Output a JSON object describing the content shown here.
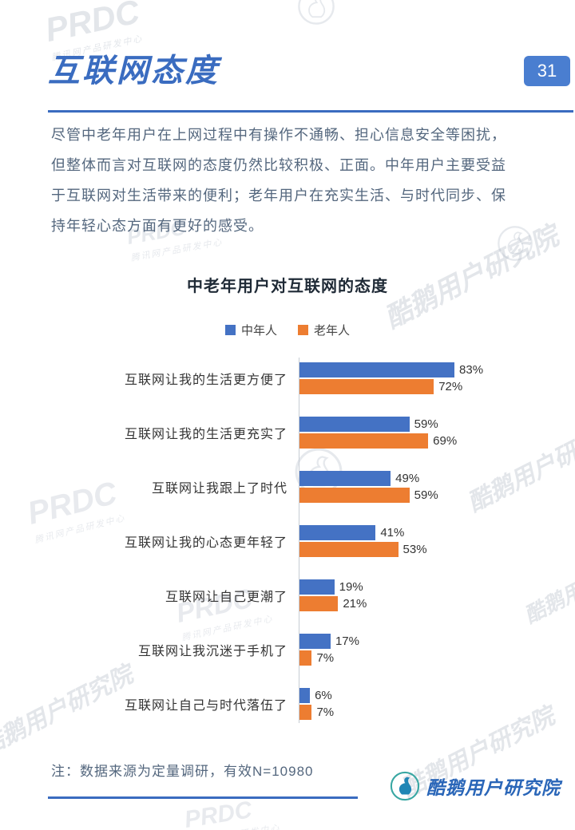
{
  "header": {
    "title": "互联网态度",
    "page_number": "31"
  },
  "intro": {
    "lines": [
      "尽管中老年用户在上网过程中有操作不通畅、担心信息安全等困扰，",
      "但整体而言对互联网的态度仍然比较积极、正面。中年用户主要受益",
      "于互联网对生活带来的便利；老年用户在充实生活、与时代同步、保",
      "持年轻心态方面有更好的感受。"
    ]
  },
  "chart_data": {
    "type": "bar",
    "orientation": "horizontal",
    "title": "中老年用户对互联网的态度",
    "categories": [
      "互联网让我的生活更方便了",
      "互联网让我的生活更充实了",
      "互联网让我跟上了时代",
      "互联网让我的心态更年轻了",
      "互联网让自己更潮了",
      "互联网让我沉迷于手机了",
      "互联网让自己与时代落伍了"
    ],
    "series": [
      {
        "name": "中年人",
        "color": "#4472C4",
        "values": [
          83,
          59,
          49,
          41,
          19,
          17,
          6
        ]
      },
      {
        "name": "老年人",
        "color": "#ED7D31",
        "values": [
          72,
          69,
          59,
          53,
          21,
          7,
          7
        ]
      }
    ],
    "value_suffix": "%",
    "xlim": [
      0,
      100
    ],
    "legend_position": "top",
    "grid": false
  },
  "footer": {
    "note": "注：数据来源为定量调研，有效N=10980",
    "brand": "酷鹅用户研究院"
  },
  "watermarks": {
    "prdc": "PRDC",
    "prdc_sub": "腾讯网产品研发中心",
    "brand": "酷鹅用户研究院"
  },
  "colors": {
    "accent_blue": "#3a6cc0",
    "badge_blue": "#4a7ed0",
    "bar_blue": "#4472C4",
    "bar_orange": "#ED7D31",
    "brand_blue": "#2a66b8"
  }
}
